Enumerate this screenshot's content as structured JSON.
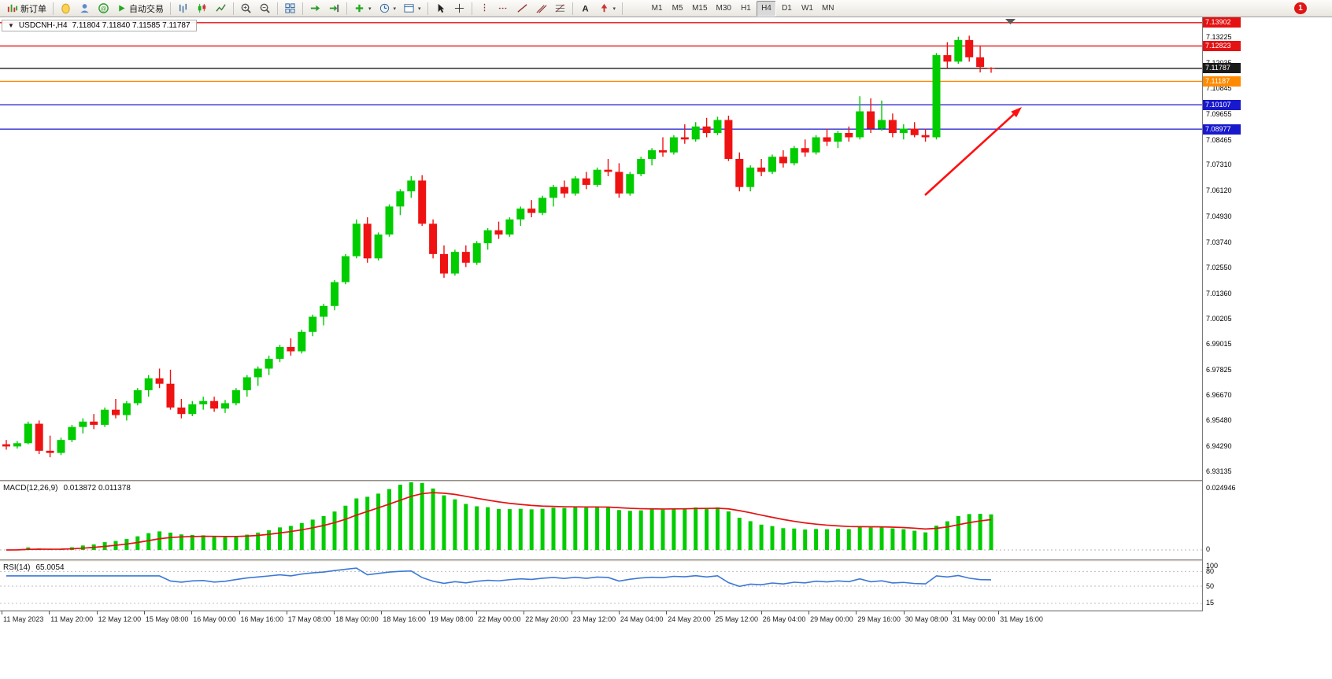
{
  "window": {
    "notification_count": "1"
  },
  "toolbar": {
    "new_order_label": "新订单",
    "auto_trading_label": "自动交易",
    "timeframes": [
      "M1",
      "M5",
      "M15",
      "M30",
      "H1",
      "H4",
      "D1",
      "W1",
      "MN"
    ],
    "active_timeframe": "H4"
  },
  "chart_data": [
    {
      "type": "candlestick",
      "title_symbol": "USDCNH-,H4",
      "title_ohlc": "7.11804 7.11840 7.11585 7.11787",
      "colors": {
        "up": "#00cc00",
        "down": "#ef1212"
      },
      "price_range": [
        6.9275,
        7.1415
      ],
      "y_axis_labels": [
        "7.13225",
        "7.12035",
        "7.10845",
        "7.09655",
        "7.08465",
        "7.07310",
        "7.06120",
        "7.04930",
        "7.03740",
        "7.02550",
        "7.01360",
        "7.00205",
        "6.99015",
        "6.97825",
        "6.96670",
        "6.95480",
        "6.94290",
        "6.93135"
      ],
      "x_axis_labels": [
        "11 May 2023",
        "11 May 20:00",
        "12 May 12:00",
        "15 May 08:00",
        "16 May 00:00",
        "16 May 16:00",
        "17 May 08:00",
        "18 May 00:00",
        "18 May 16:00",
        "19 May 08:00",
        "22 May 00:00",
        "22 May 20:00",
        "23 May 12:00",
        "24 May 04:00",
        "24 May 20:00",
        "25 May 12:00",
        "26 May 04:00",
        "29 May 00:00",
        "29 May 16:00",
        "30 May 08:00",
        "31 May 00:00",
        "31 May 16:00"
      ],
      "levels": [
        {
          "price": 7.13902,
          "label": "7.13902",
          "color": "#e41212"
        },
        {
          "price": 7.12823,
          "label": "7.12823",
          "color": "#e41212"
        },
        {
          "price": 7.11787,
          "label": "7.11787",
          "color": "#1a1a1a"
        },
        {
          "price": 7.11187,
          "label": "7.11187",
          "color": "#ff8a00"
        },
        {
          "price": 7.10107,
          "label": "7.10107",
          "color": "#1818cc"
        },
        {
          "price": 7.08977,
          "label": "7.08977",
          "color": "#1818cc"
        }
      ],
      "annotation_arrow": {
        "from": [
          1175,
          226
        ],
        "to": [
          1298,
          114
        ],
        "color": "#ff1010"
      },
      "candles": [
        [
          6.944,
          6.946,
          6.9415,
          6.943
        ],
        [
          6.943,
          6.9455,
          6.942,
          6.9445
        ],
        [
          6.9445,
          6.9545,
          6.944,
          6.9535
        ],
        [
          6.9535,
          6.955,
          6.9395,
          6.941
        ],
        [
          6.941,
          6.948,
          6.938,
          6.94
        ],
        [
          6.94,
          6.947,
          6.939,
          6.946
        ],
        [
          6.946,
          6.953,
          6.945,
          6.952
        ],
        [
          6.952,
          6.956,
          6.949,
          6.9545
        ],
        [
          6.9545,
          6.958,
          6.951,
          6.953
        ],
        [
          6.953,
          6.961,
          6.952,
          6.96
        ],
        [
          6.96,
          6.965,
          6.956,
          6.9575
        ],
        [
          6.9575,
          6.964,
          6.955,
          6.963
        ],
        [
          6.963,
          6.97,
          6.962,
          6.969
        ],
        [
          6.969,
          6.976,
          6.966,
          6.9745
        ],
        [
          6.9745,
          6.979,
          6.97,
          6.972
        ],
        [
          6.972,
          6.9785,
          6.96,
          6.961
        ],
        [
          6.961,
          6.965,
          6.956,
          6.958
        ],
        [
          6.958,
          6.964,
          6.957,
          6.9625
        ],
        [
          6.9625,
          6.966,
          6.96,
          6.964
        ],
        [
          6.964,
          6.966,
          6.959,
          6.9605
        ],
        [
          6.9605,
          6.9645,
          6.9585,
          6.963
        ],
        [
          6.963,
          6.97,
          6.962,
          6.969
        ],
        [
          6.969,
          6.976,
          6.966,
          6.975
        ],
        [
          6.975,
          6.98,
          6.971,
          6.979
        ],
        [
          6.979,
          6.985,
          6.976,
          6.9835
        ],
        [
          6.9835,
          6.99,
          6.982,
          6.989
        ],
        [
          6.989,
          6.993,
          6.985,
          6.987
        ],
        [
          6.987,
          6.997,
          6.986,
          6.996
        ],
        [
          6.996,
          7.004,
          6.994,
          7.003
        ],
        [
          7.003,
          7.009,
          6.999,
          7.008
        ],
        [
          7.008,
          7.02,
          7.006,
          7.019
        ],
        [
          7.019,
          7.032,
          7.018,
          7.031
        ],
        [
          7.031,
          7.048,
          7.03,
          7.046
        ],
        [
          7.046,
          7.049,
          7.028,
          7.03
        ],
        [
          7.03,
          7.042,
          7.029,
          7.041
        ],
        [
          7.041,
          7.055,
          7.04,
          7.054
        ],
        [
          7.054,
          7.062,
          7.05,
          7.061
        ],
        [
          7.061,
          7.068,
          7.058,
          7.066
        ],
        [
          7.066,
          7.0685,
          7.045,
          7.046
        ],
        [
          7.046,
          7.048,
          7.03,
          7.032
        ],
        [
          7.032,
          7.036,
          7.021,
          7.023
        ],
        [
          7.023,
          7.034,
          7.022,
          7.033
        ],
        [
          7.033,
          7.036,
          7.026,
          7.028
        ],
        [
          7.028,
          7.038,
          7.027,
          7.037
        ],
        [
          7.037,
          7.044,
          7.034,
          7.043
        ],
        [
          7.043,
          7.047,
          7.039,
          7.041
        ],
        [
          7.041,
          7.049,
          7.04,
          7.048
        ],
        [
          7.048,
          7.054,
          7.045,
          7.053
        ],
        [
          7.053,
          7.057,
          7.049,
          7.051
        ],
        [
          7.051,
          7.059,
          7.05,
          7.058
        ],
        [
          7.058,
          7.064,
          7.054,
          7.063
        ],
        [
          7.063,
          7.066,
          7.058,
          7.06
        ],
        [
          7.06,
          7.068,
          7.059,
          7.067
        ],
        [
          7.067,
          7.07,
          7.062,
          7.064
        ],
        [
          7.064,
          7.072,
          7.063,
          7.071
        ],
        [
          7.071,
          7.076,
          7.068,
          7.07
        ],
        [
          7.07,
          7.074,
          7.058,
          7.06
        ],
        [
          7.06,
          7.07,
          7.059,
          7.069
        ],
        [
          7.069,
          7.077,
          7.068,
          7.076
        ],
        [
          7.076,
          7.081,
          7.073,
          7.08
        ],
        [
          7.08,
          7.086,
          7.077,
          7.079
        ],
        [
          7.079,
          7.087,
          7.078,
          7.086
        ],
        [
          7.086,
          7.092,
          7.083,
          7.085
        ],
        [
          7.085,
          7.093,
          7.084,
          7.091
        ],
        [
          7.091,
          7.095,
          7.086,
          7.088
        ],
        [
          7.088,
          7.0955,
          7.087,
          7.094
        ],
        [
          7.094,
          7.096,
          7.075,
          7.076
        ],
        [
          7.076,
          7.079,
          7.061,
          7.063
        ],
        [
          7.063,
          7.073,
          7.061,
          7.072
        ],
        [
          7.072,
          7.076,
          7.068,
          7.07
        ],
        [
          7.07,
          7.078,
          7.069,
          7.077
        ],
        [
          7.077,
          7.08,
          7.072,
          7.074
        ],
        [
          7.074,
          7.082,
          7.073,
          7.081
        ],
        [
          7.081,
          7.085,
          7.077,
          7.079
        ],
        [
          7.079,
          7.087,
          7.078,
          7.086
        ],
        [
          7.086,
          7.09,
          7.082,
          7.084
        ],
        [
          7.084,
          7.089,
          7.081,
          7.088
        ],
        [
          7.088,
          7.091,
          7.084,
          7.086
        ],
        [
          7.086,
          7.105,
          7.085,
          7.098
        ],
        [
          7.098,
          7.104,
          7.088,
          7.09
        ],
        [
          7.09,
          7.103,
          7.089,
          7.094
        ],
        [
          7.094,
          7.097,
          7.086,
          7.088
        ],
        [
          7.088,
          7.092,
          7.085,
          7.09
        ],
        [
          7.09,
          7.093,
          7.086,
          7.087
        ],
        [
          7.087,
          7.09,
          7.084,
          7.086
        ],
        [
          7.086,
          7.125,
          7.085,
          7.124
        ],
        [
          7.124,
          7.13,
          7.118,
          7.121
        ],
        [
          7.121,
          7.1325,
          7.12,
          7.131
        ],
        [
          7.131,
          7.133,
          7.121,
          7.123
        ],
        [
          7.123,
          7.128,
          7.116,
          7.1185
        ],
        [
          7.11804,
          7.1184,
          7.11585,
          7.11787
        ]
      ]
    },
    {
      "type": "macd",
      "label": "MACD(12,26,9)",
      "values_text": "0.013872 0.011378",
      "params": [
        12,
        26,
        9
      ],
      "histogram_color": "#00cc00",
      "signal_color": "#e41212",
      "scale_max_label": "0.024946",
      "scale_zero_label": "0",
      "range": [
        -0.0035,
        0.025
      ]
    },
    {
      "type": "rsi",
      "label": "RSI(14)",
      "value_text": "65.0054",
      "period": 14,
      "line_color": "#3c78d8",
      "levels": [
        80,
        50,
        15
      ],
      "y_axis_labels": [
        "100",
        "80",
        "50",
        "15"
      ],
      "range": [
        0,
        100
      ]
    }
  ]
}
